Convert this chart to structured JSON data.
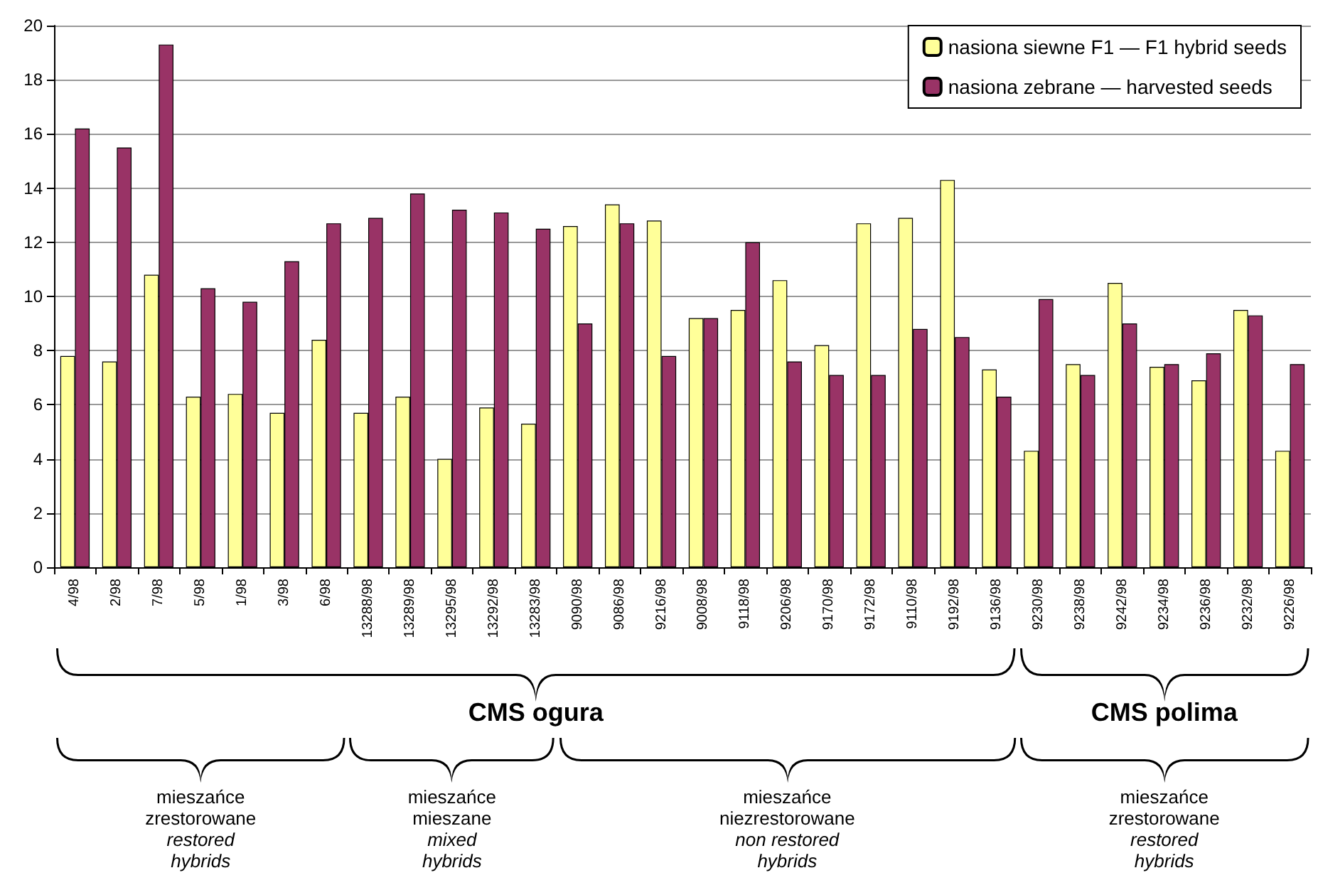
{
  "chart_data": {
    "type": "bar",
    "categories": [
      "4/98",
      "2/98",
      "7/98",
      "5/98",
      "1/98",
      "3/98",
      "6/98",
      "13288/98",
      "13289/98",
      "13295/98",
      "13292/98",
      "13283/98",
      "9090/98",
      "9086/98",
      "9216/98",
      "9008/98",
      "9118/98",
      "9206/98",
      "9170/98",
      "9172/98",
      "9110/98",
      "9192/98",
      "9136/98",
      "9230/98",
      "9238/98",
      "9242/98",
      "9234/98",
      "9236/98",
      "9232/98",
      "9226/98"
    ],
    "series": [
      {
        "name": "nasiona siewne F1 — F1 hybrid seeds",
        "color": "#ffff99",
        "values": [
          7.8,
          7.6,
          10.8,
          6.3,
          6.4,
          5.7,
          8.4,
          5.7,
          6.3,
          4.0,
          5.9,
          5.3,
          12.6,
          13.4,
          12.8,
          9.2,
          9.5,
          10.6,
          8.2,
          12.7,
          12.9,
          14.3,
          7.3,
          4.3,
          7.5,
          10.5,
          7.4,
          6.9,
          9.5,
          4.3
        ]
      },
      {
        "name": "nasiona zebrane — harvested seeds",
        "color": "#993366",
        "values": [
          16.2,
          15.5,
          19.3,
          10.3,
          9.8,
          11.3,
          12.7,
          12.9,
          13.8,
          13.2,
          13.1,
          12.5,
          9.0,
          12.7,
          7.8,
          9.2,
          12.0,
          7.6,
          7.1,
          7.1,
          8.8,
          8.5,
          6.3,
          9.9,
          7.1,
          9.0,
          7.5,
          7.9,
          9.3,
          7.5
        ]
      }
    ],
    "ylim": [
      0,
      20
    ],
    "yticks": [
      0,
      2,
      4,
      6,
      8,
      10,
      12,
      14,
      16,
      18,
      20
    ],
    "grid": "y",
    "legend": "top right",
    "annotations": [
      "CMS ogura",
      "CMS polima",
      "mieszańce\nzrestorowane",
      "restored\nhybrids",
      "mieszańce\nmieszane",
      "mixed\nhybrids",
      "mieszańce\nniezrestorowane",
      "non restored\nhybrids",
      "mieszańce\nzrestorowane",
      "restored\nhybrids"
    ]
  }
}
